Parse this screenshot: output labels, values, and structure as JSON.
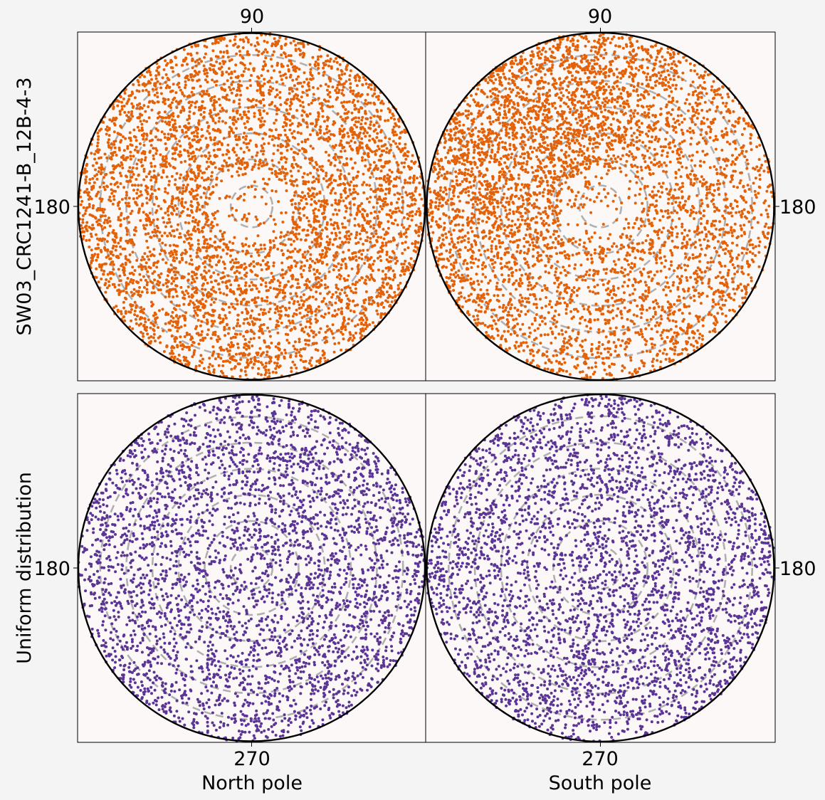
{
  "chart_data": {
    "type": "scatter",
    "projection": "polar",
    "grid": true,
    "grid_style": "dashed concentric circles",
    "rows": [
      {
        "label": "SW03_CRC1241-B_12B-4-3",
        "color": "#e36209"
      },
      {
        "label": "Uniform distribution",
        "color": "#5b3595"
      }
    ],
    "columns": [
      {
        "label": "North pole"
      },
      {
        "label": "South pole"
      }
    ],
    "ticks": {
      "top": "90",
      "side": "180",
      "bottom": "270"
    },
    "grid_radii": [
      0.12,
      0.27,
      0.42,
      0.57,
      0.72,
      0.87
    ],
    "panels": [
      {
        "row": 0,
        "col": 0,
        "series": "SW03_CRC1241-B_12B-4-3",
        "n_points": 5000,
        "distribution": "uniform on sphere, slight depletion near pole"
      },
      {
        "row": 0,
        "col": 1,
        "series": "SW03_CRC1241-B_12B-4-3",
        "n_points": 5000,
        "distribution": "clustered toward upper-left, depleted near pole"
      },
      {
        "row": 1,
        "col": 0,
        "series": "Uniform distribution",
        "n_points": 3600,
        "distribution": "uniform on sphere"
      },
      {
        "row": 1,
        "col": 1,
        "series": "Uniform distribution",
        "n_points": 3600,
        "distribution": "uniform on sphere"
      }
    ]
  },
  "colors": {
    "background": "#f4f4f4",
    "panel_bg": "#fcf8f7",
    "grid": "#b0b0b0",
    "circle": "#000000"
  }
}
